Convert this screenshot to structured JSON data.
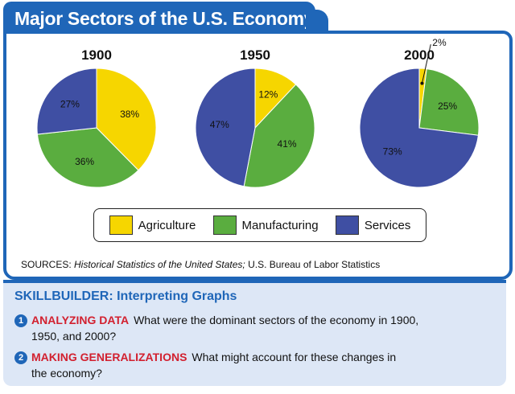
{
  "header": {
    "title": "Major Sectors of the U.S. Economy"
  },
  "colors": {
    "agriculture": "#f6d600",
    "manufacturing": "#5aad3f",
    "services": "#3f4fa3",
    "accent": "#1f66b8",
    "heading_red": "#d2202f"
  },
  "chart_data": [
    {
      "type": "pie",
      "title": "1900",
      "categories": [
        "Agriculture",
        "Manufacturing",
        "Services"
      ],
      "values": [
        38,
        36,
        27
      ],
      "labels": [
        "38%",
        "36%",
        "27%"
      ]
    },
    {
      "type": "pie",
      "title": "1950",
      "categories": [
        "Agriculture",
        "Manufacturing",
        "Services"
      ],
      "values": [
        12,
        41,
        47
      ],
      "labels": [
        "12%",
        "41%",
        "47%"
      ]
    },
    {
      "type": "pie",
      "title": "2000",
      "categories": [
        "Agriculture",
        "Manufacturing",
        "Services"
      ],
      "values": [
        2,
        25,
        73
      ],
      "labels": [
        "2%",
        "25%",
        "73%"
      ]
    }
  ],
  "legend": [
    {
      "label": "Agriculture",
      "color": "#f6d600"
    },
    {
      "label": "Manufacturing",
      "color": "#5aad3f"
    },
    {
      "label": "Services",
      "color": "#3f4fa3"
    }
  ],
  "sources": {
    "prefix": "SOURCES: ",
    "italic": "Historical Statistics of the United States;",
    "suffix": " U.S. Bureau of Labor Statistics"
  },
  "skillbuilder": {
    "title": "SKILLBUILDER: Interpreting Graphs",
    "questions": [
      {
        "num": "1",
        "heading": "ANALYZING DATA",
        "line1": "What were the dominant sectors of the economy in 1900,",
        "line2": "1950, and 2000?"
      },
      {
        "num": "2",
        "heading": "MAKING GENERALIZATIONS",
        "line1": "What might account for these changes in",
        "line2": "the economy?"
      }
    ]
  }
}
